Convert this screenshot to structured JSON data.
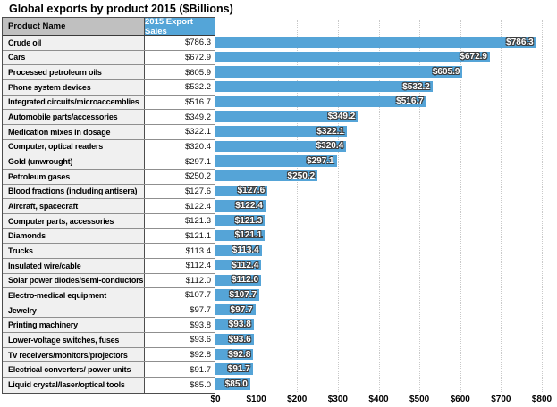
{
  "title": "Global exports by product 2015 ($Billions)",
  "table": {
    "columns": [
      "Product Name",
      "2015 Export Sales"
    ]
  },
  "chart_data": {
    "type": "bar",
    "orientation": "horizontal",
    "title": "Global exports by product 2015 ($Billions)",
    "categories": [
      "Crude oil",
      "Cars",
      "Processed petroleum oils",
      "Phone system devices",
      "Integrated circuits/microaccemblies",
      "Automobile parts/accessories",
      "Medication mixes in dosage",
      "Computer, optical readers",
      "Gold (unwrought)",
      "Petroleum gases",
      "Blood fractions (including antisera)",
      "Aircraft, spacecraft",
      "Computer parts, accessories",
      "Diamonds",
      "Trucks",
      "Insulated wire/cable",
      "Solar power diodes/semi-conductors",
      "Electro-medical equipment",
      "Jewelry",
      "Printing machinery",
      "Lower-voltage switches, fuses",
      "Tv receivers/monitors/projectors",
      "Electrical converters/ power units",
      "Liquid crystal/laser/optical tools"
    ],
    "values": [
      786.3,
      672.9,
      605.9,
      532.2,
      516.7,
      349.2,
      322.1,
      320.4,
      297.1,
      250.2,
      127.6,
      122.4,
      121.3,
      121.1,
      113.4,
      112.4,
      112.0,
      107.7,
      97.7,
      93.8,
      93.6,
      92.8,
      91.7,
      85.0
    ],
    "value_labels": [
      "$786.3",
      "$672.9",
      "$605.9",
      "$532.2",
      "$516.7",
      "$349.2",
      "$322.1",
      "$320.4",
      "$297.1",
      "$250.2",
      "$127.6",
      "$122.4",
      "$121.3",
      "$121.1",
      "$113.4",
      "$112.4",
      "$112.0",
      "$107.7",
      "$97.7",
      "$93.8",
      "$93.6",
      "$92.8",
      "$91.7",
      "$85.0"
    ],
    "xlim": [
      0,
      800
    ],
    "x_ticks": [
      0,
      100,
      200,
      300,
      400,
      500,
      600,
      700,
      800
    ],
    "x_tick_labels": [
      "$0",
      "$100",
      "$200",
      "$300",
      "$400",
      "$500",
      "$600",
      "$700",
      "$800"
    ],
    "grid": "dotted-vertical",
    "legend": "none",
    "xlabel": "",
    "ylabel": ""
  },
  "colors": {
    "bar": "#55a4d7",
    "header_blue": "#54a5d8",
    "header_gray": "#c0c0c0",
    "name_cell_bg": "#f0f0f0",
    "grid": "#c9c9c9"
  }
}
